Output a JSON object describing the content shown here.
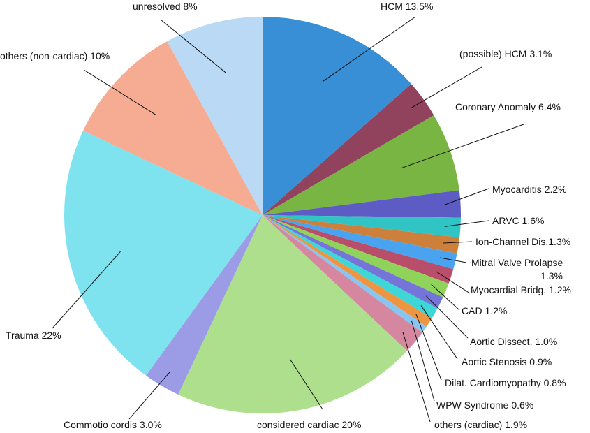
{
  "chart_data": {
    "type": "pie",
    "title": "",
    "start_angle_deg": 0,
    "direction": "clockwise",
    "slices": [
      {
        "label": "HCM 13.5%",
        "value": 13.5,
        "color": "#398fd5"
      },
      {
        "label": "(possible) HCM 3.1%",
        "value": 3.1,
        "color": "#91435e"
      },
      {
        "label": "Coronary Anomaly 6.4%",
        "value": 6.4,
        "color": "#79b543"
      },
      {
        "label": "Myocarditis 2.2%",
        "value": 2.2,
        "color": "#5d5cc4"
      },
      {
        "label": "ARVC 1.6%",
        "value": 1.6,
        "color": "#30c4c4"
      },
      {
        "label": "Ion-Channel Dis.1.3%",
        "value": 1.3,
        "color": "#cd7f3c"
      },
      {
        "label": [
          "Mitral Valve Prolapse",
          "1.3%"
        ],
        "value": 1.3,
        "color": "#4aa3ee"
      },
      {
        "label": "Myocardial Bridg. 1.2%",
        "value": 1.2,
        "color": "#b84e6a"
      },
      {
        "label": "CAD 1.2%",
        "value": 1.2,
        "color": "#8fd35a"
      },
      {
        "label": "Aortic Dissect. 1.0%",
        "value": 1.0,
        "color": "#7474d9"
      },
      {
        "label": "Aortic Stenosis 0.9%",
        "value": 0.9,
        "color": "#3ed6d6"
      },
      {
        "label": "Dilat. Cardiomyopathy 0.8%",
        "value": 0.8,
        "color": "#ee9542"
      },
      {
        "label": "WPW Syndrome 0.6%",
        "value": 0.6,
        "color": "#8ac4f0"
      },
      {
        "label": "others (cardiac) 1.9%",
        "value": 1.9,
        "color": "#d4879f"
      },
      {
        "label": "considered cardiac 20%",
        "value": 20,
        "color": "#addf8c"
      },
      {
        "label": "Commotio cordis 3.0%",
        "value": 3.0,
        "color": "#9b9be6"
      },
      {
        "label": "Trauma 22%",
        "value": 22,
        "color": "#7ee3ef"
      },
      {
        "label": "others (non-cardiac) 10%",
        "value": 10,
        "color": "#f5ac92"
      },
      {
        "label": "unresolved 8%",
        "value": 8,
        "color": "#b9d9f4"
      }
    ]
  }
}
